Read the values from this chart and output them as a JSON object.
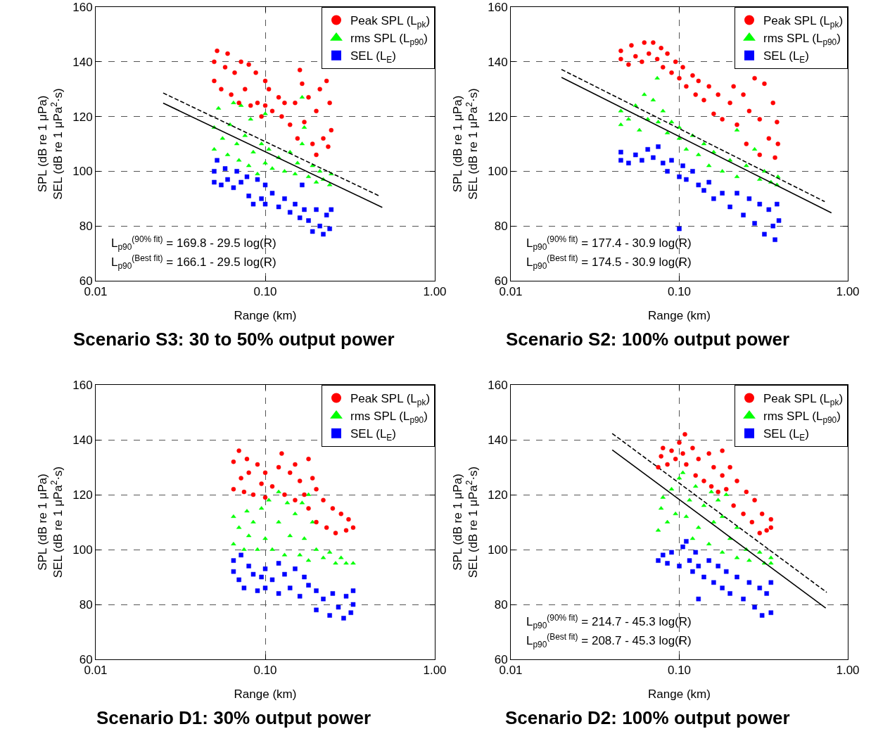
{
  "chart_data": [
    {
      "type": "scatter",
      "title": "Scenario S3: 30 to 50% output power",
      "xlabel": "Range (km)",
      "ylabel": "SPL (dB re 1 μPa)\nSEL (dB re 1 μPa$^{2}$·s)",
      "log": "x",
      "grid": true,
      "legend": "top right",
      "xlim": [
        0.01,
        1.0
      ],
      "xticks": [
        {
          "value": 0.01,
          "label": "0.01"
        },
        {
          "value": 0.1,
          "label": "0.10"
        },
        {
          "value": 1.0,
          "label": "1.00"
        }
      ],
      "ylim": [
        60,
        160
      ],
      "yticks": [
        60,
        80,
        100,
        120,
        140,
        160
      ],
      "annotations": [
        "L$_{p90}$$^{(90% fit)}$ = 169.8 - 29.5 log(R)",
        "L$_{p90}$$^{(Best fit)}$ = 166.1 - 29.5 log(R)"
      ],
      "series": [
        {
          "name": "Peak SPL (L$_{pk}$)",
          "color": "#ff0000",
          "marker": "circle",
          "x": [
            0.05,
            0.05,
            0.052,
            0.055,
            0.058,
            0.06,
            0.063,
            0.066,
            0.07,
            0.072,
            0.076,
            0.08,
            0.082,
            0.088,
            0.09,
            0.095,
            0.1,
            0.1,
            0.105,
            0.11,
            0.12,
            0.125,
            0.13,
            0.14,
            0.15,
            0.155,
            0.16,
            0.165,
            0.17,
            0.18,
            0.19,
            0.2,
            0.2,
            0.21,
            0.22,
            0.23,
            0.235,
            0.24,
            0.245
          ],
          "values": [
            133,
            140,
            144,
            130,
            138,
            143,
            128,
            136,
            125,
            140,
            130,
            139,
            124,
            136,
            125,
            120,
            133,
            124,
            130,
            122,
            127,
            120,
            125,
            117,
            125,
            112,
            137,
            132,
            118,
            127,
            110,
            106,
            122,
            130,
            112,
            133,
            109,
            125,
            115
          ]
        },
        {
          "name": "rms SPL (L$_{p90}$)",
          "color": "#00ff00",
          "marker": "triangle",
          "x": [
            0.05,
            0.05,
            0.053,
            0.056,
            0.06,
            0.062,
            0.065,
            0.068,
            0.07,
            0.072,
            0.076,
            0.08,
            0.082,
            0.085,
            0.09,
            0.095,
            0.1,
            0.1,
            0.105,
            0.11,
            0.12,
            0.13,
            0.14,
            0.15,
            0.155,
            0.165,
            0.165,
            0.17,
            0.18,
            0.19,
            0.2,
            0.21,
            0.22,
            0.24,
            0.245
          ],
          "values": [
            108,
            116,
            123,
            112,
            106,
            117,
            125,
            110,
            104,
            124,
            113,
            102,
            119,
            107,
            99,
            110,
            121,
            103,
            108,
            101,
            105,
            100,
            107,
            99,
            103,
            127,
            110,
            116,
            98,
            102,
            96,
            100,
            97,
            95,
            99
          ]
        },
        {
          "name": "SEL (L$_{E}$)",
          "color": "#0000ff",
          "marker": "square",
          "x": [
            0.05,
            0.05,
            0.052,
            0.055,
            0.058,
            0.06,
            0.065,
            0.068,
            0.072,
            0.078,
            0.08,
            0.085,
            0.09,
            0.095,
            0.1,
            0.1,
            0.11,
            0.12,
            0.13,
            0.14,
            0.15,
            0.16,
            0.165,
            0.17,
            0.18,
            0.19,
            0.2,
            0.21,
            0.22,
            0.23,
            0.24,
            0.245
          ],
          "values": [
            96,
            100,
            104,
            95,
            101,
            97,
            94,
            100,
            96,
            98,
            91,
            88,
            97,
            90,
            95,
            88,
            92,
            87,
            90,
            85,
            88,
            83,
            95,
            86,
            82,
            78,
            86,
            80,
            77,
            84,
            79,
            86
          ]
        },
        {
          "type": "line",
          "color": "#000000",
          "line_style": "dashed",
          "x": [
            0.025,
            0.47
          ],
          "values": [
            128.6,
            91.0
          ]
        },
        {
          "type": "line",
          "color": "#000000",
          "line_style": "solid",
          "x": [
            0.025,
            0.49
          ],
          "values": [
            124.9,
            86.8
          ]
        }
      ]
    },
    {
      "type": "scatter",
      "title": "Scenario S2: 100% output power",
      "xlabel": "Range (km)",
      "ylabel": "SPL (dB re 1 μPa)\nSEL (dB re 1 μPa$^{2}$·s)",
      "log": "x",
      "grid": true,
      "legend": "top right",
      "xlim": [
        0.01,
        1.0
      ],
      "xticks": [
        {
          "value": 0.01,
          "label": "0.01"
        },
        {
          "value": 0.1,
          "label": "0.10"
        },
        {
          "value": 1.0,
          "label": "1.00"
        }
      ],
      "ylim": [
        60,
        160
      ],
      "yticks": [
        60,
        80,
        100,
        120,
        140,
        160
      ],
      "annotations": [
        "L$_{p90}$$^{(90% fit)}$ = 177.4 - 30.9 log(R)",
        "L$_{p90}$$^{(Best fit)}$ = 174.5 - 30.9 log(R)"
      ],
      "series": [
        {
          "name": "Peak SPL (L$_{pk}$)",
          "color": "#ff0000",
          "marker": "circle",
          "x": [
            0.045,
            0.045,
            0.05,
            0.052,
            0.055,
            0.06,
            0.062,
            0.066,
            0.07,
            0.074,
            0.078,
            0.08,
            0.085,
            0.09,
            0.095,
            0.1,
            0.105,
            0.11,
            0.12,
            0.125,
            0.13,
            0.14,
            0.15,
            0.16,
            0.17,
            0.18,
            0.2,
            0.21,
            0.22,
            0.24,
            0.25,
            0.26,
            0.28,
            0.3,
            0.3,
            0.32,
            0.34,
            0.36,
            0.37,
            0.38,
            0.385
          ],
          "values": [
            141,
            144,
            139,
            146,
            142,
            140,
            147,
            143,
            147,
            141,
            145,
            138,
            143,
            136,
            140,
            134,
            138,
            131,
            135,
            128,
            133,
            126,
            131,
            121,
            128,
            119,
            125,
            131,
            117,
            128,
            110,
            122,
            134,
            106,
            119,
            132,
            112,
            125,
            105,
            118,
            110
          ]
        },
        {
          "name": "rms SPL (L$_{p90}$)",
          "color": "#00ff00",
          "marker": "triangle",
          "x": [
            0.045,
            0.045,
            0.05,
            0.055,
            0.058,
            0.062,
            0.065,
            0.07,
            0.074,
            0.075,
            0.08,
            0.085,
            0.09,
            0.1,
            0.1,
            0.11,
            0.12,
            0.13,
            0.14,
            0.15,
            0.16,
            0.18,
            0.2,
            0.22,
            0.22,
            0.25,
            0.28,
            0.3,
            0.32,
            0.35,
            0.38,
            0.385
          ],
          "values": [
            117,
            122,
            119,
            124,
            115,
            128,
            119,
            126,
            134,
            118,
            122,
            114,
            118,
            112,
            116,
            108,
            113,
            106,
            110,
            102,
            107,
            100,
            104,
            115,
            98,
            102,
            108,
            97,
            100,
            96,
            95,
            98
          ]
        },
        {
          "name": "SEL (L$_{E}$)",
          "color": "#0000ff",
          "marker": "square",
          "x": [
            0.045,
            0.045,
            0.05,
            0.055,
            0.06,
            0.065,
            0.07,
            0.075,
            0.08,
            0.085,
            0.09,
            0.1,
            0.1,
            0.105,
            0.11,
            0.12,
            0.13,
            0.14,
            0.15,
            0.16,
            0.18,
            0.2,
            0.22,
            0.24,
            0.26,
            0.28,
            0.3,
            0.32,
            0.34,
            0.36,
            0.37,
            0.38,
            0.39
          ],
          "values": [
            104,
            107,
            103,
            106,
            104,
            108,
            105,
            109,
            103,
            100,
            104,
            98,
            79,
            102,
            97,
            100,
            95,
            93,
            96,
            90,
            92,
            87,
            92,
            84,
            90,
            81,
            88,
            77,
            86,
            80,
            75,
            88,
            82
          ]
        },
        {
          "type": "line",
          "color": "#000000",
          "line_style": "dashed",
          "x": [
            0.02,
            0.73
          ],
          "values": [
            137.2,
            88.9
          ]
        },
        {
          "type": "line",
          "color": "#000000",
          "line_style": "solid",
          "x": [
            0.02,
            0.8
          ],
          "values": [
            134.3,
            84.8
          ]
        }
      ]
    },
    {
      "type": "scatter",
      "title": "Scenario D1: 30% output power",
      "xlabel": "Range (km)",
      "ylabel": "SPL (dB re 1 μPa)\nSEL (dB re 1 μPa$^{2}$·s)",
      "log": "x",
      "grid": true,
      "legend": "top right",
      "xlim": [
        0.01,
        1.0
      ],
      "xticks": [
        {
          "value": 0.01,
          "label": "0.01"
        },
        {
          "value": 0.1,
          "label": "0.10"
        },
        {
          "value": 1.0,
          "label": "1.00"
        }
      ],
      "ylim": [
        60,
        160
      ],
      "yticks": [
        60,
        80,
        100,
        120,
        140,
        160
      ],
      "series": [
        {
          "name": "Peak SPL (L$_{pk}$)",
          "color": "#ff0000",
          "marker": "circle",
          "x": [
            0.065,
            0.065,
            0.07,
            0.072,
            0.075,
            0.078,
            0.08,
            0.085,
            0.09,
            0.095,
            0.1,
            0.1,
            0.11,
            0.12,
            0.125,
            0.13,
            0.14,
            0.15,
            0.15,
            0.16,
            0.17,
            0.18,
            0.18,
            0.19,
            0.2,
            0.2,
            0.22,
            0.23,
            0.25,
            0.26,
            0.28,
            0.3,
            0.31,
            0.33
          ],
          "values": [
            122,
            132,
            136,
            126,
            121,
            133,
            128,
            120,
            131,
            124,
            119,
            128,
            123,
            130,
            135,
            120,
            128,
            118,
            131,
            125,
            120,
            133,
            115,
            126,
            110,
            122,
            118,
            108,
            115,
            106,
            113,
            107,
            111,
            108
          ]
        },
        {
          "name": "rms SPL (L$_{p90}$)",
          "color": "#00ff00",
          "marker": "triangle",
          "x": [
            0.065,
            0.065,
            0.07,
            0.075,
            0.078,
            0.08,
            0.085,
            0.09,
            0.095,
            0.1,
            0.105,
            0.11,
            0.12,
            0.12,
            0.13,
            0.135,
            0.14,
            0.15,
            0.16,
            0.165,
            0.17,
            0.18,
            0.18,
            0.19,
            0.2,
            0.22,
            0.24,
            0.26,
            0.28,
            0.3,
            0.33
          ],
          "values": [
            102,
            112,
            108,
            100,
            114,
            105,
            110,
            100,
            115,
            104,
            118,
            100,
            121,
            110,
            98,
            117,
            105,
            113,
            98,
            117,
            104,
            120,
            96,
            110,
            100,
            97,
            99,
            95,
            97,
            95,
            95
          ]
        },
        {
          "name": "SEL (L$_{E}$)",
          "color": "#0000ff",
          "marker": "square",
          "x": [
            0.065,
            0.065,
            0.07,
            0.072,
            0.075,
            0.08,
            0.085,
            0.09,
            0.095,
            0.1,
            0.1,
            0.11,
            0.12,
            0.12,
            0.13,
            0.14,
            0.15,
            0.16,
            0.17,
            0.18,
            0.2,
            0.2,
            0.22,
            0.24,
            0.25,
            0.27,
            0.29,
            0.3,
            0.32,
            0.33,
            0.33
          ],
          "values": [
            92,
            96,
            89,
            98,
            86,
            94,
            91,
            85,
            90,
            93,
            86,
            89,
            95,
            84,
            91,
            86,
            93,
            83,
            90,
            87,
            78,
            85,
            82,
            76,
            84,
            79,
            75,
            83,
            77,
            85,
            80
          ]
        }
      ]
    },
    {
      "type": "scatter",
      "title": "Scenario D2: 100% output power",
      "xlabel": "Range (km)",
      "ylabel": "SPL (dB re 1 μPa)\nSEL (dB re 1 μPa$^{2}$·s)",
      "log": "x",
      "grid": true,
      "legend": "top right",
      "xlim": [
        0.01,
        1.0
      ],
      "xticks": [
        {
          "value": 0.01,
          "label": "0.01"
        },
        {
          "value": 0.1,
          "label": "0.10"
        },
        {
          "value": 1.0,
          "label": "1.00"
        }
      ],
      "ylim": [
        60,
        160
      ],
      "yticks": [
        60,
        80,
        100,
        120,
        140,
        160
      ],
      "annotations": [
        "L$_{p90}$$^{(90% fit)}$ = 214.7 - 45.3 log(R)",
        "L$_{p90}$$^{(Best fit)}$ = 208.7 - 45.3 log(R)"
      ],
      "series": [
        {
          "name": "Peak SPL (L$_{pk}$)",
          "color": "#ff0000",
          "marker": "circle",
          "x": [
            0.075,
            0.078,
            0.08,
            0.085,
            0.09,
            0.095,
            0.1,
            0.105,
            0.108,
            0.11,
            0.12,
            0.125,
            0.13,
            0.14,
            0.15,
            0.155,
            0.16,
            0.17,
            0.18,
            0.18,
            0.19,
            0.2,
            0.21,
            0.22,
            0.24,
            0.25,
            0.27,
            0.28,
            0.3,
            0.31,
            0.33,
            0.35,
            0.35
          ],
          "values": [
            130,
            134,
            137,
            131,
            136,
            133,
            139,
            135,
            142,
            131,
            137,
            127,
            133,
            125,
            135,
            123,
            130,
            121,
            136,
            127,
            122,
            130,
            116,
            125,
            113,
            121,
            110,
            118,
            106,
            113,
            107,
            111,
            108
          ]
        },
        {
          "name": "rms SPL (L$_{p90}$)",
          "color": "#00ff00",
          "marker": "triangle",
          "x": [
            0.075,
            0.078,
            0.08,
            0.085,
            0.09,
            0.095,
            0.1,
            0.105,
            0.11,
            0.115,
            0.12,
            0.125,
            0.13,
            0.14,
            0.15,
            0.155,
            0.16,
            0.17,
            0.18,
            0.18,
            0.19,
            0.2,
            0.22,
            0.22,
            0.25,
            0.26,
            0.3,
            0.32,
            0.35,
            0.35
          ],
          "values": [
            107,
            115,
            119,
            110,
            122,
            113,
            126,
            128,
            112,
            118,
            104,
            123,
            108,
            116,
            102,
            121,
            110,
            118,
            99,
            112,
            120,
            104,
            97,
            108,
            100,
            96,
            99,
            95,
            97,
            95
          ]
        },
        {
          "name": "SEL (L$_{E}$)",
          "color": "#0000ff",
          "marker": "square",
          "x": [
            0.075,
            0.08,
            0.085,
            0.09,
            0.1,
            0.105,
            0.11,
            0.115,
            0.12,
            0.125,
            0.13,
            0.13,
            0.14,
            0.15,
            0.16,
            0.17,
            0.18,
            0.19,
            0.2,
            0.22,
            0.24,
            0.26,
            0.28,
            0.3,
            0.31,
            0.33,
            0.35,
            0.35
          ],
          "values": [
            96,
            98,
            95,
            99,
            94,
            101,
            103,
            96,
            92,
            99,
            82,
            94,
            90,
            96,
            88,
            94,
            86,
            92,
            84,
            90,
            82,
            88,
            79,
            86,
            76,
            84,
            77,
            88
          ]
        },
        {
          "type": "line",
          "color": "#000000",
          "line_style": "dashed",
          "x": [
            0.04,
            0.75
          ],
          "values": [
            142.3,
            84.4
          ]
        },
        {
          "type": "line",
          "color": "#000000",
          "line_style": "solid",
          "x": [
            0.04,
            0.74
          ],
          "values": [
            136.3,
            78.7
          ]
        }
      ]
    }
  ]
}
